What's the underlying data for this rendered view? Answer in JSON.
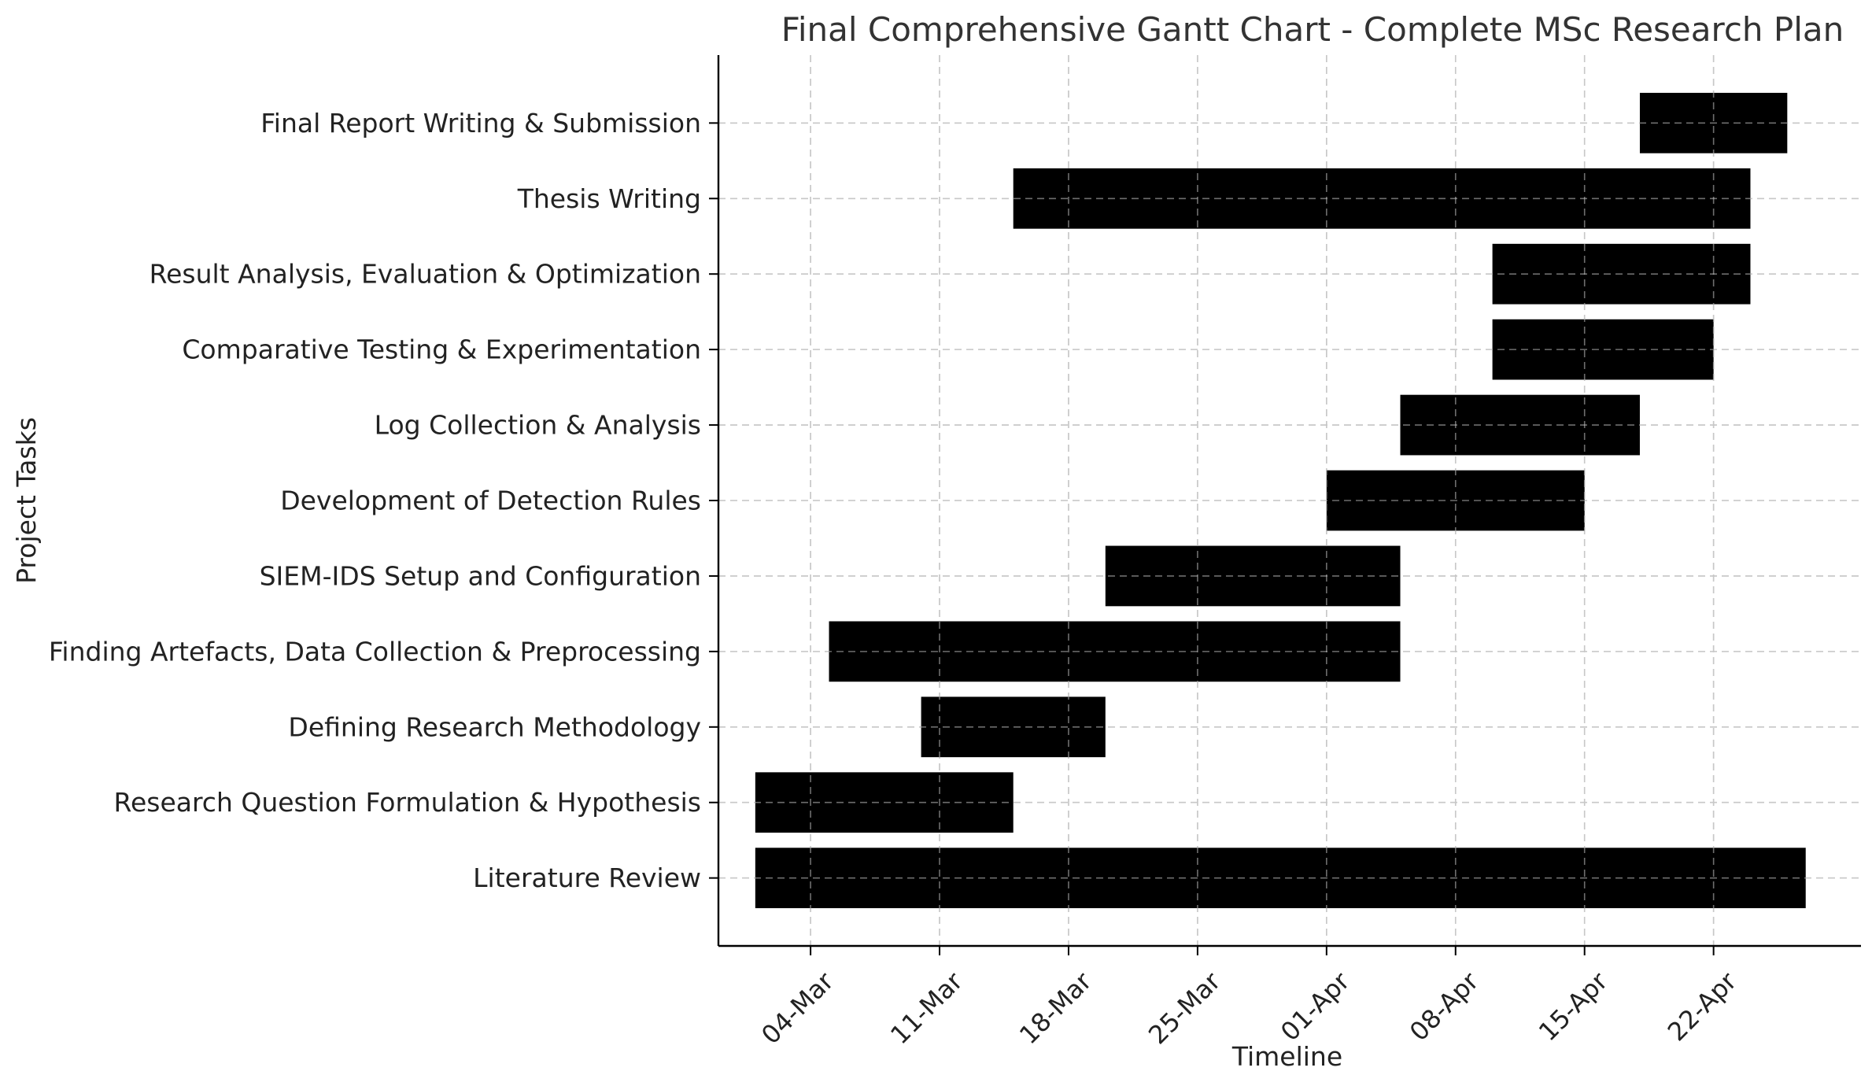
{
  "chart_data": {
    "type": "gantt",
    "title": "Final Comprehensive Gantt Chart - Complete MSc Research Plan",
    "xlabel": "Timeline",
    "ylabel": "Project Tasks",
    "xlim": [
      "2024-02-28",
      "2024-04-30"
    ],
    "x_ticks": [
      {
        "date": "2024-03-04",
        "label": "04-Mar"
      },
      {
        "date": "2024-03-11",
        "label": "11-Mar"
      },
      {
        "date": "2024-03-18",
        "label": "18-Mar"
      },
      {
        "date": "2024-03-25",
        "label": "25-Mar"
      },
      {
        "date": "2024-04-01",
        "label": "01-Apr"
      },
      {
        "date": "2024-04-08",
        "label": "08-Apr"
      },
      {
        "date": "2024-04-15",
        "label": "15-Apr"
      },
      {
        "date": "2024-04-22",
        "label": "22-Apr"
      }
    ],
    "grid": true,
    "bar_color": "#000000",
    "tasks": [
      {
        "name": "Literature Review",
        "start": "2024-03-01",
        "end": "2024-04-27"
      },
      {
        "name": "Research Question Formulation & Hypothesis",
        "start": "2024-03-01",
        "end": "2024-03-15"
      },
      {
        "name": "Defining Research Methodology",
        "start": "2024-03-10",
        "end": "2024-03-20"
      },
      {
        "name": "Finding Artefacts, Data Collection & Preprocessing",
        "start": "2024-03-05",
        "end": "2024-04-05"
      },
      {
        "name": "SIEM-IDS Setup and Configuration",
        "start": "2024-03-20",
        "end": "2024-04-05"
      },
      {
        "name": "Development of Detection Rules",
        "start": "2024-04-01",
        "end": "2024-04-15"
      },
      {
        "name": "Log Collection & Analysis",
        "start": "2024-04-05",
        "end": "2024-04-18"
      },
      {
        "name": "Comparative Testing & Experimentation",
        "start": "2024-04-10",
        "end": "2024-04-22"
      },
      {
        "name": "Result Analysis, Evaluation & Optimization",
        "start": "2024-04-10",
        "end": "2024-04-24"
      },
      {
        "name": "Thesis Writing",
        "start": "2024-03-15",
        "end": "2024-04-24"
      },
      {
        "name": "Final Report Writing & Submission",
        "start": "2024-04-18",
        "end": "2024-04-26"
      }
    ]
  }
}
